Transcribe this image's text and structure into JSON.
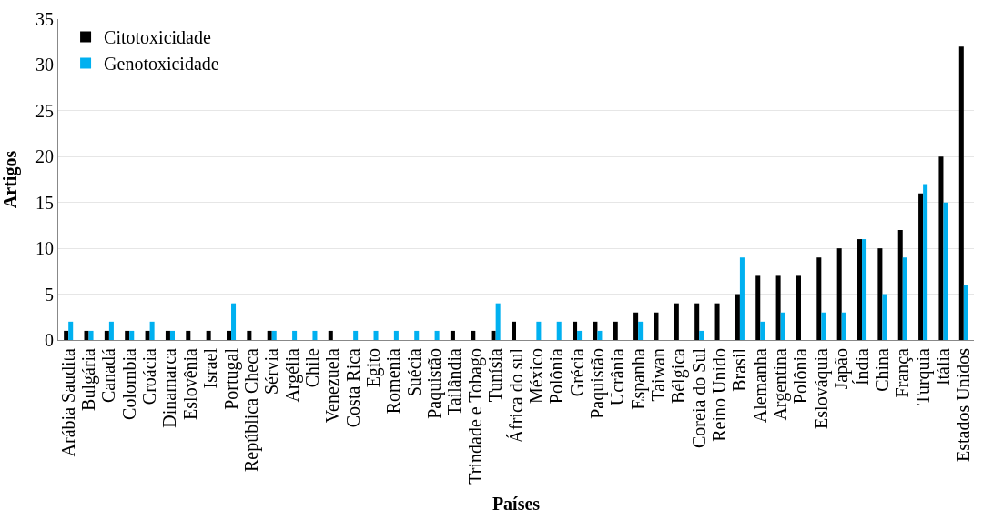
{
  "chart_data": {
    "type": "bar",
    "xlabel": "Países",
    "ylabel": "Artigos",
    "categories": [
      "Arábia Saudita",
      "Bulgária",
      "Canadá",
      "Colombia",
      "Croácia",
      "Dinamarca",
      "Eslovênia",
      "Israel",
      "Portugal",
      "República Checa",
      "Sérvia",
      "Argélia",
      "Chile",
      "Venezuela",
      "Costa Rica",
      "Egito",
      "Romenia",
      "Suécia",
      "Paquistão",
      "Tailândia",
      "Trindade e Tobago",
      "Tunísia",
      "África do sul",
      "México",
      "Polônia",
      "Grécia",
      "Paquistão",
      "Ucrânia",
      "Espanha",
      "Taiwan",
      "Bélgica",
      "Coreia do Sul",
      "Reino Unido",
      "Brasil",
      "Alemanha",
      "Argentina",
      "Polônia",
      "Eslováquia",
      "Japão",
      "Índia",
      "China",
      "França",
      "Turquia",
      "Itália",
      "Estados Unidos"
    ],
    "series": [
      {
        "name": "Citotoxicidade",
        "color": "#000000",
        "values": [
          1,
          1,
          1,
          1,
          1,
          1,
          1,
          1,
          1,
          1,
          1,
          0,
          0,
          1,
          0,
          0,
          0,
          0,
          0,
          1,
          1,
          1,
          2,
          0,
          0,
          2,
          2,
          2,
          3,
          3,
          4,
          4,
          4,
          5,
          7,
          7,
          7,
          9,
          10,
          11,
          10,
          12,
          16,
          20,
          32
        ]
      },
      {
        "name": "Genotoxicidade",
        "color": "#00b0f0",
        "values": [
          2,
          1,
          2,
          1,
          2,
          1,
          0,
          0,
          4,
          0,
          1,
          1,
          1,
          0,
          1,
          1,
          1,
          1,
          1,
          0,
          0,
          4,
          0,
          2,
          2,
          1,
          1,
          0,
          2,
          0,
          0,
          1,
          0,
          9,
          2,
          3,
          0,
          3,
          3,
          11,
          5,
          9,
          17,
          15,
          6
        ]
      }
    ],
    "ylim": [
      0,
      35
    ],
    "yticks": [
      0,
      5,
      10,
      15,
      20,
      25,
      30,
      35
    ],
    "grid": "y",
    "legend": "top left"
  }
}
